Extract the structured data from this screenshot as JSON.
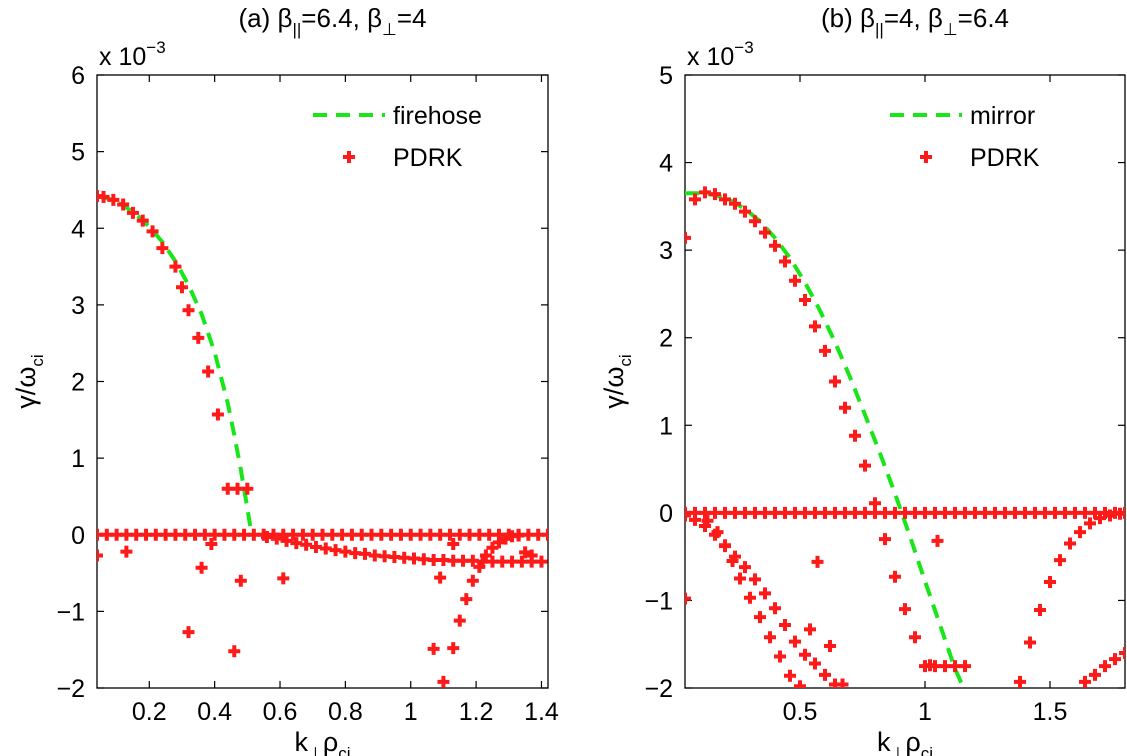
{
  "colors": {
    "model_curve": "#19e619",
    "pdrk_points": "#ff1a1a",
    "axes": "#000000",
    "background": "#ffffff"
  },
  "chart_data": [
    {
      "type": "scatter",
      "panel": "a",
      "title": {
        "prefix": "(a) β",
        "sub1": "||",
        "mid": "=6.4, β",
        "sub2": "⊥",
        "suffix": "=4"
      },
      "exponent_note": {
        "base": "x 10",
        "exp": "−3"
      },
      "xlabel": {
        "main": "k",
        "sub1": "⊥",
        "mid": "ρ",
        "sub2": "ci"
      },
      "ylabel": {
        "main": "γ/ω",
        "sub": "ci"
      },
      "xlim": [
        0.04,
        1.42
      ],
      "ylim": [
        -2,
        6
      ],
      "xticks": [
        0.2,
        0.4,
        0.6,
        0.8,
        1,
        1.2,
        1.4
      ],
      "xtick_labels": [
        "0.2",
        "0.4",
        "0.6",
        "0.8",
        "1",
        "1.2",
        "1.4"
      ],
      "yticks": [
        -2,
        -1,
        0,
        1,
        2,
        3,
        4,
        5,
        6
      ],
      "ytick_labels": [
        "−2",
        "−1",
        "0",
        "1",
        "2",
        "3",
        "4",
        "5",
        "6"
      ],
      "legend_position": "top-right",
      "y_scale_note": "y values in units of 1e-3",
      "series": [
        {
          "name": "firehose",
          "style": "dashed-line",
          "x": [
            0.04,
            0.08,
            0.12,
            0.16,
            0.2,
            0.24,
            0.28,
            0.32,
            0.36,
            0.4,
            0.44,
            0.46,
            0.48,
            0.5,
            0.51,
            0.52
          ],
          "y": [
            4.42,
            4.38,
            4.3,
            4.18,
            4.02,
            3.82,
            3.57,
            3.26,
            2.88,
            2.38,
            1.72,
            1.3,
            0.85,
            0.35,
            0.08,
            -0.02
          ]
        },
        {
          "name": "PDRK",
          "style": "plus-markers",
          "groups": [
            {
              "x": [
                0.04,
                0.07,
                0.1,
                0.13,
                0.16,
                0.19,
                0.22,
                0.25,
                0.28,
                0.31,
                0.34,
                0.37,
                0.4,
                0.43,
                0.46,
                0.49,
                0.52,
                0.55,
                0.58,
                0.61,
                0.64,
                0.67,
                0.7,
                0.73,
                0.76,
                0.79,
                0.82,
                0.85,
                0.88,
                0.91,
                0.94,
                0.97,
                1.0,
                1.03,
                1.06,
                1.09,
                1.12,
                1.15,
                1.18,
                1.21,
                1.24,
                1.27,
                1.3,
                1.33,
                1.36,
                1.39,
                1.42
              ],
              "y": [
                0,
                0,
                0,
                0,
                0,
                0,
                0,
                0,
                0,
                0,
                0,
                0,
                0,
                0,
                0,
                0,
                0,
                0,
                0,
                0,
                0,
                0,
                0,
                0,
                0,
                0,
                0,
                0,
                0,
                0,
                0,
                0,
                0,
                0,
                0,
                0,
                0,
                0,
                0,
                0,
                0,
                0,
                0,
                0,
                0,
                0,
                0
              ]
            },
            {
              "x": [
                0.04,
                0.06,
                0.09,
                0.12,
                0.15,
                0.18,
                0.21,
                0.24,
                0.28,
                0.3,
                0.32,
                0.35,
                0.38,
                0.41,
                0.44,
                0.47,
                0.5
              ],
              "y": [
                4.42,
                4.41,
                4.37,
                4.31,
                4.2,
                4.1,
                3.96,
                3.74,
                3.5,
                3.23,
                2.93,
                2.57,
                2.13,
                1.57,
                0.6,
                0.6,
                0.6
              ]
            },
            {
              "x": [
                0.56,
                0.59,
                0.62,
                0.65,
                0.68,
                0.71,
                0.74,
                0.77,
                0.8,
                0.83,
                0.86,
                0.89,
                0.92,
                0.95,
                0.98,
                1.01,
                1.04,
                1.07,
                1.1,
                1.13,
                1.16,
                1.19,
                1.22,
                1.25,
                1.28,
                1.31,
                1.34,
                1.37,
                1.4
              ],
              "y": [
                -0.03,
                -0.05,
                -0.08,
                -0.11,
                -0.13,
                -0.16,
                -0.18,
                -0.2,
                -0.22,
                -0.24,
                -0.25,
                -0.27,
                -0.28,
                -0.29,
                -0.3,
                -0.31,
                -0.32,
                -0.33,
                -0.33,
                -0.34,
                -0.34,
                -0.34,
                -0.35,
                -0.35,
                -0.35,
                -0.35,
                -0.35,
                -0.35,
                -0.35
              ]
            },
            {
              "x": [
                0.04,
                0.13,
                0.32,
                0.36,
                0.39,
                0.46,
                0.48,
                0.61,
                1.07,
                1.1,
                1.09,
                1.13,
                1.15,
                1.17,
                1.19,
                1.21,
                1.23,
                1.25,
                1.27,
                1.29,
                1.31,
                1.33,
                1.35,
                1.37,
                1.13
              ],
              "y": [
                -0.27,
                -0.22,
                -1.27,
                -0.43,
                -0.12,
                -1.52,
                -0.6,
                -0.57,
                -1.49,
                -1.92,
                -0.56,
                -1.48,
                -1.12,
                -0.84,
                -0.6,
                -0.42,
                -0.27,
                -0.17,
                -0.1,
                -0.05,
                -0.02,
                -0.01,
                -0.23,
                -0.27,
                -0.12
              ]
            }
          ]
        }
      ]
    },
    {
      "type": "scatter",
      "panel": "b",
      "title": {
        "prefix": "(b) β",
        "sub1": "||",
        "mid": "=4, β",
        "sub2": "⊥",
        "suffix": "=6.4"
      },
      "exponent_note": {
        "base": "x 10",
        "exp": "−3"
      },
      "xlabel": {
        "main": "k",
        "sub1": "⊥",
        "mid": "ρ",
        "sub2": "ci"
      },
      "ylabel": {
        "main": "γ/ω",
        "sub": "ci"
      },
      "xlim": [
        0.04,
        1.8
      ],
      "ylim": [
        -2,
        5
      ],
      "xticks": [
        0.5,
        1,
        1.5
      ],
      "xtick_labels": [
        "0.5",
        "1",
        "1.5"
      ],
      "yticks": [
        -2,
        -1,
        0,
        1,
        2,
        3,
        4,
        5
      ],
      "ytick_labels": [
        "−2",
        "−1",
        "0",
        "1",
        "2",
        "3",
        "4",
        "5"
      ],
      "legend_position": "top-right",
      "y_scale_note": "y values in units of 1e-3",
      "series": [
        {
          "name": "mirror",
          "style": "dashed-line",
          "x": [
            0.04,
            0.1,
            0.16,
            0.22,
            0.28,
            0.34,
            0.4,
            0.46,
            0.52,
            0.58,
            0.64,
            0.7,
            0.76,
            0.82,
            0.88,
            0.94,
            1.0,
            1.06,
            1.12,
            1.17
          ],
          "y": [
            3.65,
            3.65,
            3.63,
            3.57,
            3.47,
            3.33,
            3.14,
            2.91,
            2.63,
            2.31,
            1.95,
            1.55,
            1.12,
            0.68,
            0.22,
            -0.27,
            -0.78,
            -1.28,
            -1.78,
            -2.1
          ]
        },
        {
          "name": "PDRK",
          "style": "plus-markers",
          "groups": [
            {
              "x": [
                0.04,
                0.08,
                0.12,
                0.16,
                0.2,
                0.24,
                0.28,
                0.32,
                0.36,
                0.4,
                0.44,
                0.48,
                0.52,
                0.56,
                0.6,
                0.64,
                0.68,
                0.72,
                0.76,
                0.8,
                0.84,
                0.88,
                0.92,
                0.96,
                1.0,
                1.04,
                1.08,
                1.12,
                1.16,
                1.2,
                1.24,
                1.28,
                1.32,
                1.36,
                1.4,
                1.44,
                1.48,
                1.52,
                1.56,
                1.6,
                1.64,
                1.68,
                1.72,
                1.76,
                1.8
              ],
              "y": [
                0,
                0,
                0,
                0,
                0,
                0,
                0,
                0,
                0,
                0,
                0,
                0,
                0,
                0,
                0,
                0,
                0,
                0,
                0,
                0,
                0,
                0,
                0,
                0,
                0,
                0,
                0,
                0,
                0,
                0,
                0,
                0,
                0,
                0,
                0,
                0,
                0,
                0,
                0,
                0,
                0,
                0,
                0,
                0,
                0
              ]
            },
            {
              "x": [
                0.04,
                0.08,
                0.12,
                0.16,
                0.2,
                0.24,
                0.28,
                0.32,
                0.36,
                0.4,
                0.44,
                0.48,
                0.52,
                0.56,
                0.6,
                0.64,
                0.68,
                0.72,
                0.76,
                0.8,
                0.84,
                0.88,
                0.92,
                0.96,
                1.0,
                1.04,
                1.08,
                1.12,
                1.16
              ],
              "y": [
                3.14,
                3.58,
                3.66,
                3.64,
                3.58,
                3.53,
                3.44,
                3.33,
                3.2,
                3.05,
                2.87,
                2.65,
                2.43,
                2.13,
                1.85,
                1.5,
                1.2,
                0.88,
                0.54,
                0.11,
                -0.3,
                -0.73,
                -1.1,
                -1.42,
                -1.75,
                -1.75,
                -1.75,
                -1.75,
                -1.75
              ]
            },
            {
              "x": [
                0.04,
                0.08,
                0.12,
                0.16,
                0.2,
                0.24,
                0.28,
                0.32,
                0.36,
                0.4,
                0.44,
                0.48,
                0.52,
                0.56,
                0.6,
                0.64
              ],
              "y": [
                -0.03,
                -0.08,
                -0.15,
                -0.25,
                -0.37,
                -0.5,
                -0.62,
                -0.76,
                -0.92,
                -1.09,
                -1.28,
                -1.47,
                -1.62,
                -1.72,
                -1.85,
                -1.96
              ]
            },
            {
              "x": [
                0.04,
                0.13,
                0.17,
                0.2,
                0.23,
                0.26,
                0.3,
                0.34,
                0.38,
                0.42,
                0.46,
                0.5,
                0.54,
                0.57,
                0.62,
                0.67,
                1.05,
                1.02,
                1.38,
                1.42,
                1.46,
                1.5,
                1.54,
                1.58,
                1.62,
                1.66,
                1.7,
                1.74,
                1.78,
                1.64,
                1.68,
                1.72,
                1.76,
                1.8
              ],
              "y": [
                -0.98,
                -0.09,
                -0.22,
                -0.38,
                -0.55,
                -0.75,
                -0.97,
                -1.19,
                -1.42,
                -1.64,
                -1.86,
                -1.98,
                -1.33,
                -0.56,
                -1.52,
                -1.96,
                -0.32,
                -1.74,
                -1.93,
                -1.48,
                -1.11,
                -0.79,
                -0.54,
                -0.35,
                -0.22,
                -0.12,
                -0.06,
                -0.03,
                -0.01,
                -1.93,
                -1.85,
                -1.75,
                -1.67,
                -1.6
              ]
            }
          ]
        }
      ]
    }
  ]
}
